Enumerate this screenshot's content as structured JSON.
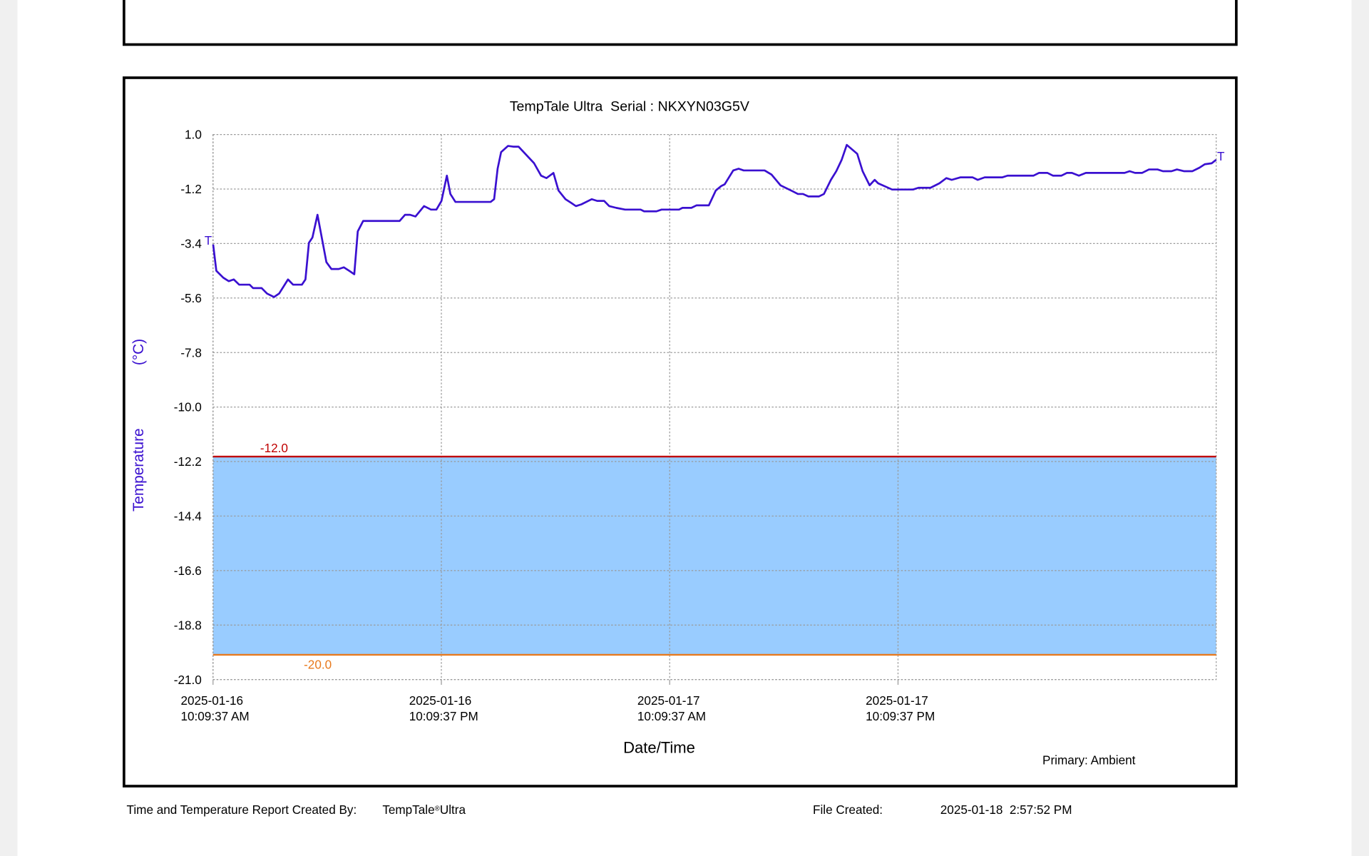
{
  "chart_data": {
    "type": "line",
    "title": "TempTale Ultra  Serial : NKXYN03G5V",
    "ylabel": "Temperature",
    "yunit": "(°C)",
    "xlabel": "Date/Time",
    "x": [
      "2025-01-16 10:10",
      "2025-01-16 10:20",
      "2025-01-16 10:42",
      "2025-01-16 10:59",
      "2025-01-16 11:15",
      "2025-01-16 11:32",
      "2025-01-16 12:05",
      "2025-01-16 12:16",
      "2025-01-16 12:43",
      "2025-01-16 13:00",
      "2025-01-16 13:22",
      "2025-01-16 13:38",
      "2025-01-16 14:06",
      "2025-01-16 14:22",
      "2025-01-16 14:50",
      "2025-01-16 15:01",
      "2025-01-16 15:12",
      "2025-01-16 15:23",
      "2025-01-16 15:39",
      "2025-01-16 16:07",
      "2025-01-16 16:23",
      "2025-01-16 16:46",
      "2025-01-16 17:02",
      "2025-01-16 17:19",
      "2025-01-16 17:35",
      "2025-01-16 17:46",
      "2025-01-16 18:03",
      "2025-01-16 19:58",
      "2025-01-16 20:15",
      "2025-01-16 20:31",
      "2025-01-16 20:48",
      "2025-01-16 21:15",
      "2025-01-16 21:37",
      "2025-01-16 21:54",
      "2025-01-16 22:10",
      "2025-01-16 22:27",
      "2025-01-16 22:38",
      "2025-01-16 22:54",
      "2025-01-17 00:45",
      "2025-01-17 00:56",
      "2025-01-17 01:07",
      "2025-01-17 01:18",
      "2025-01-17 01:40",
      "2025-01-17 01:56",
      "2025-01-17 02:13",
      "2025-01-17 03:02",
      "2025-01-17 03:24",
      "2025-01-17 03:41",
      "2025-01-17 04:03",
      "2025-01-17 04:19",
      "2025-01-17 04:41",
      "2025-01-17 04:58",
      "2025-01-17 05:14",
      "2025-01-17 05:31",
      "2025-01-17 06:04",
      "2025-01-17 06:21",
      "2025-01-17 06:43",
      "2025-01-17 06:59",
      "2025-01-17 07:21",
      "2025-01-17 07:49",
      "2025-01-17 08:38",
      "2025-01-17 08:49",
      "2025-01-17 09:28",
      "2025-01-17 09:44",
      "2025-01-17 10:39",
      "2025-01-17 10:50",
      "2025-01-17 11:18",
      "2025-01-17 11:34",
      "2025-01-17 12:13",
      "2025-01-17 12:35",
      "2025-01-17 12:52",
      "2025-01-17 13:03",
      "2025-01-17 13:30",
      "2025-01-17 13:47",
      "2025-01-17 14:03",
      "2025-01-17 15:09",
      "2025-01-17 15:31",
      "2025-01-17 15:59",
      "2025-01-17 16:37",
      "2025-01-17 16:54",
      "2025-01-17 17:10",
      "2025-01-17 17:27",
      "2025-01-17 18:00",
      "2025-01-17 18:16",
      "2025-01-17 18:38",
      "2025-01-17 18:55",
      "2025-01-17 19:12",
      "2025-01-17 19:28",
      "2025-01-17 20:01",
      "2025-01-17 20:18",
      "2025-01-17 20:40",
      "2025-01-17 20:56",
      "2025-01-17 21:07",
      "2025-01-17 21:51",
      "2025-01-17 22:57",
      "2025-01-17 23:14",
      "2025-01-17 23:52",
      "2025-01-18 00:20",
      "2025-01-18 00:42",
      "2025-01-18 00:59",
      "2025-01-18 01:26",
      "2025-01-18 02:05",
      "2025-01-18 02:21",
      "2025-01-18 02:43",
      "2025-01-18 03:38",
      "2025-01-18 03:55",
      "2025-01-18 05:17",
      "2025-01-18 05:34",
      "2025-01-18 06:01",
      "2025-01-18 06:18",
      "2025-01-18 06:45",
      "2025-01-18 07:02",
      "2025-01-18 07:18",
      "2025-01-18 07:40",
      "2025-01-18 08:02",
      "2025-01-18 10:04",
      "2025-01-18 10:20",
      "2025-01-18 10:37",
      "2025-01-18 10:59",
      "2025-01-18 11:21",
      "2025-01-18 11:48",
      "2025-01-18 12:05",
      "2025-01-18 12:32",
      "2025-01-18 12:49",
      "2025-01-18 13:11",
      "2025-01-18 13:38",
      "2025-01-18 14:00",
      "2025-01-18 14:17",
      "2025-01-18 14:39",
      "2025-01-18 14:53"
    ],
    "series": [
      {
        "name": "Primary: Ambient",
        "color": "#3a10d0",
        "values": [
          -3.44,
          -4.5,
          -4.78,
          -4.92,
          -4.85,
          -5.06,
          -5.06,
          -5.2,
          -5.2,
          -5.42,
          -5.56,
          -5.42,
          -4.85,
          -5.06,
          -5.06,
          -4.85,
          -3.37,
          -3.16,
          -2.24,
          -4.15,
          -4.43,
          -4.43,
          -4.36,
          -4.5,
          -4.64,
          -2.91,
          -2.49,
          -2.49,
          -2.24,
          -2.24,
          -2.31,
          -1.89,
          -2.03,
          -2.03,
          -1.68,
          -0.66,
          -1.4,
          -1.72,
          -1.72,
          -1.61,
          -0.38,
          0.29,
          0.54,
          0.51,
          0.51,
          -0.16,
          -0.66,
          -0.76,
          -0.55,
          -1.26,
          -1.61,
          -1.75,
          -1.89,
          -1.82,
          -1.61,
          -1.68,
          -1.68,
          -1.89,
          -1.96,
          -2.03,
          -2.03,
          -2.1,
          -2.1,
          -2.03,
          -2.03,
          -1.96,
          -1.96,
          -1.86,
          -1.86,
          -1.26,
          -1.08,
          -1.01,
          -0.45,
          -0.38,
          -0.45,
          -0.45,
          -0.62,
          -1.05,
          -1.29,
          -1.4,
          -1.4,
          -1.5,
          -1.5,
          -1.4,
          -0.83,
          -0.48,
          -0.02,
          0.58,
          0.22,
          -0.48,
          -1.05,
          -0.83,
          -0.97,
          -1.22,
          -1.22,
          -1.15,
          -1.15,
          -0.97,
          -0.76,
          -0.83,
          -0.73,
          -0.73,
          -0.83,
          -0.73,
          -0.73,
          -0.66,
          -0.66,
          -0.55,
          -0.55,
          -0.66,
          -0.66,
          -0.55,
          -0.55,
          -0.66,
          -0.55,
          -0.55,
          -0.48,
          -0.55,
          -0.55,
          -0.41,
          -0.41,
          -0.48,
          -0.48,
          -0.41,
          -0.48,
          -0.48,
          -0.34,
          -0.2,
          -0.16,
          -0.02
        ]
      }
    ],
    "trip_marks": [
      "T",
      "T"
    ],
    "xlim": [
      "2025-01-16 10:09:37",
      "2025-01-18 14:53"
    ],
    "xticks": [
      {
        "value": "2025-01-16 10:09:37",
        "label": [
          "2025-01-16",
          "10:09:37 AM"
        ]
      },
      {
        "value": "2025-01-16 22:09:37",
        "label": [
          "2025-01-16",
          "10:09:37 PM"
        ]
      },
      {
        "value": "2025-01-17 10:09:37",
        "label": [
          "2025-01-17",
          "10:09:37 AM"
        ]
      },
      {
        "value": "2025-01-17 22:09:37",
        "label": [
          "2025-01-17",
          "10:09:37 PM"
        ]
      }
    ],
    "ylim": [
      -21,
      1
    ],
    "yticks": [
      {
        "value": 1,
        "label": "1.0"
      },
      -1.2,
      -3.4,
      -5.6,
      -7.8,
      {
        "value": -10,
        "label": "-10.0"
      },
      -12.2,
      -14.4,
      -16.6,
      -18.8,
      {
        "value": -21,
        "label": "-21.0"
      }
    ],
    "grid": true,
    "thresholds": [
      {
        "value": -12,
        "label": "-12.0",
        "color": "#c00000"
      },
      {
        "value": -20,
        "label": "-20.0",
        "color": "#e87a1e"
      }
    ],
    "band_color": "#99ccff"
  },
  "footer": {
    "created_by_label": "Time and Temperature Report Created By:",
    "product": [
      "TempTale",
      "®",
      "Ultra"
    ],
    "file_created_label": "File Created:",
    "file_created": "2025-01-18  2:57:52 PM"
  }
}
